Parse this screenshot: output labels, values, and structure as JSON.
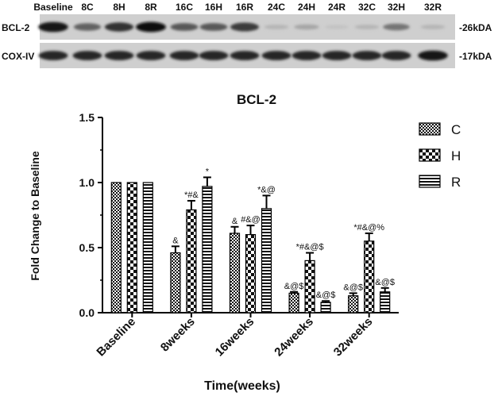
{
  "blot": {
    "lane_labels": [
      "Baseline",
      "8C",
      "8H",
      "8R",
      "16C",
      "16H",
      "16R",
      "24C",
      "24H",
      "24R",
      "32C",
      "32H",
      "32R"
    ],
    "rows": [
      {
        "label": "BCL-2",
        "size": "-26kDA",
        "intensity": [
          0.95,
          0.55,
          0.8,
          0.98,
          0.6,
          0.6,
          0.75,
          0.12,
          0.2,
          0.05,
          0.12,
          0.45,
          0.12
        ]
      },
      {
        "label": "COX-IV",
        "size": "-17kDA",
        "intensity": [
          0.85,
          0.85,
          0.85,
          0.85,
          0.85,
          0.85,
          0.85,
          0.85,
          0.85,
          0.85,
          0.85,
          0.85,
          0.95
        ]
      }
    ]
  },
  "chart_data": {
    "type": "bar",
    "title": "BCL-2",
    "xlabel": "Time(weeks)",
    "ylabel": "Fold Change to Baseline",
    "ylim": [
      0,
      1.5
    ],
    "yticks": [
      "0.0",
      "0.5",
      "1.0",
      "1.5"
    ],
    "categories": [
      "Baseline",
      "8weeks",
      "16weeks",
      "24weeks",
      "32weeks"
    ],
    "legend_position": "right",
    "series": [
      {
        "name": "C",
        "pattern": "check",
        "values": [
          1.0,
          0.46,
          0.61,
          0.15,
          0.13
        ],
        "errors": [
          0,
          0.05,
          0.05,
          0.01,
          0.02
        ],
        "annotations": [
          "",
          "&",
          "&",
          "&@$",
          "&@$"
        ]
      },
      {
        "name": "H",
        "pattern": "bigcheck",
        "values": [
          1.0,
          0.79,
          0.6,
          0.4,
          0.55
        ],
        "errors": [
          0,
          0.07,
          0.07,
          0.06,
          0.06
        ],
        "annotations": [
          "",
          "*#&",
          "#&@",
          "*#&@$",
          "*#&@%"
        ]
      },
      {
        "name": "R",
        "pattern": "hstripe",
        "values": [
          1.0,
          0.97,
          0.8,
          0.08,
          0.16
        ],
        "errors": [
          0,
          0.07,
          0.1,
          0.01,
          0.03
        ],
        "annotations": [
          "",
          "*",
          "*&@",
          "&@$",
          "&@$"
        ]
      }
    ]
  }
}
